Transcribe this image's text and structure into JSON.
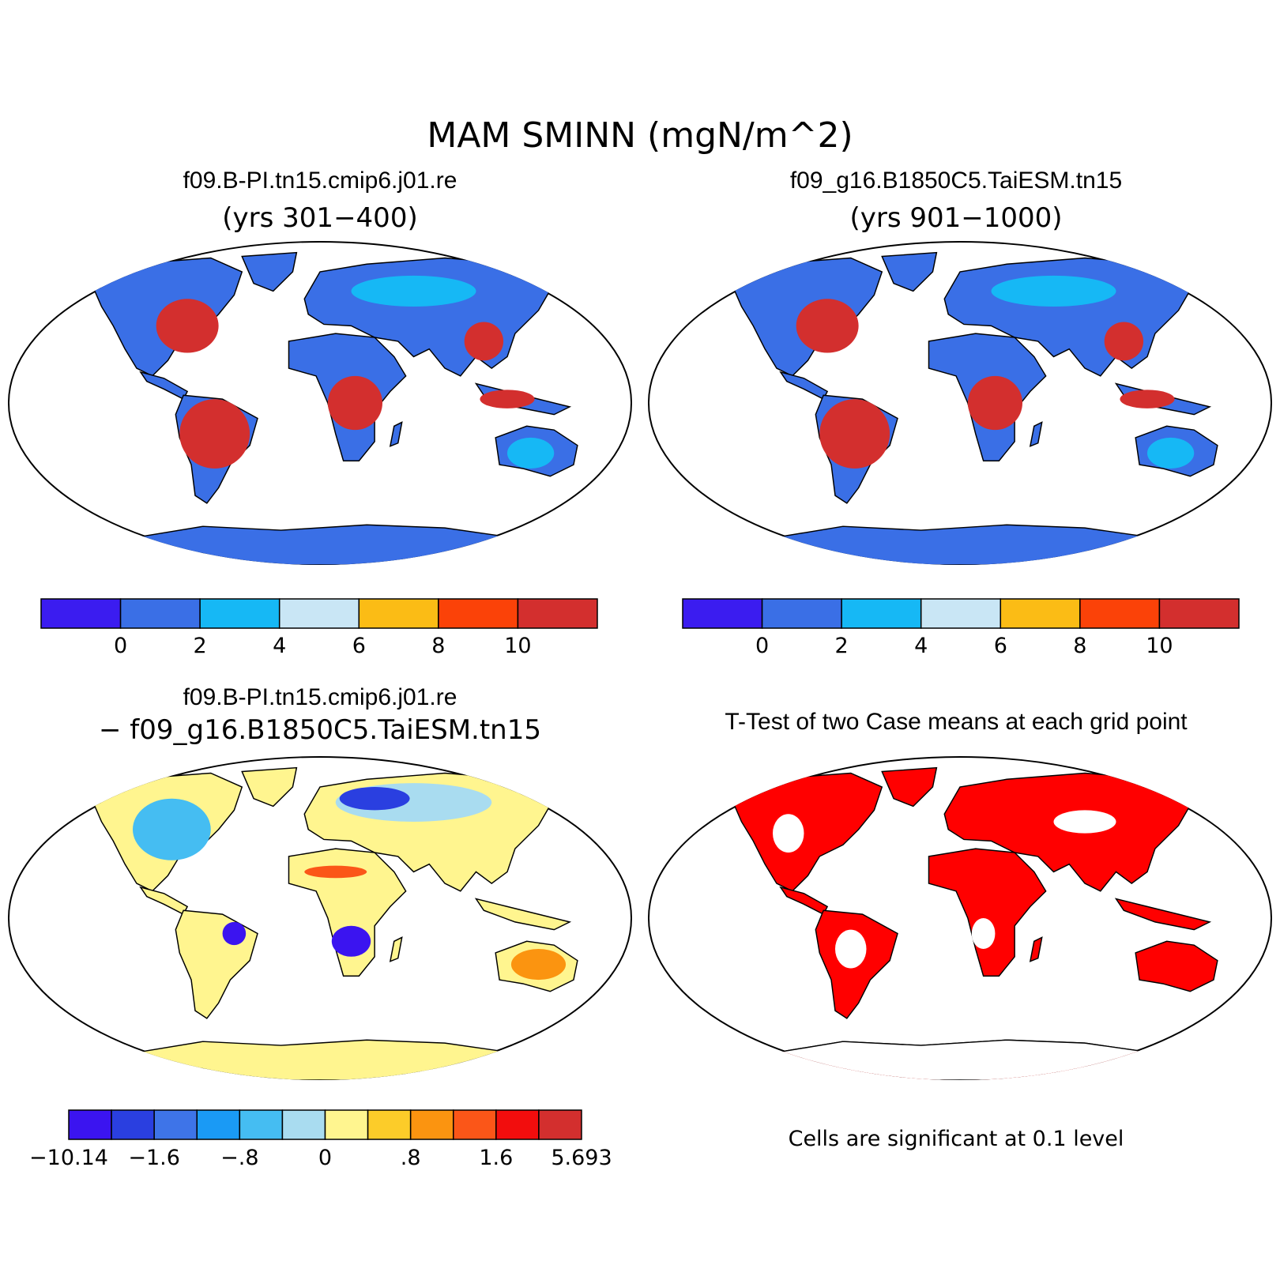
{
  "title": "MAM SMINN (mgN/m^2)",
  "panels": [
    {
      "id": "case1",
      "title": "f09.B-PI.tn15.cmip6.j01.re",
      "subtitle": "(yrs 301−400)"
    },
    {
      "id": "case2",
      "title": "f09_g16.B1850C5.TaiESM.tn15",
      "subtitle": "(yrs 901−1000)"
    },
    {
      "id": "diff",
      "title": "f09.B-PI.tn15.cmip6.j01.re",
      "subtitle": "− f09_g16.B1850C5.TaiESM.tn15"
    },
    {
      "id": "ttest",
      "title": "T-Test of two Case means at each grid point",
      "note": "Cells are significant at 0.1 level"
    }
  ],
  "colorbars": {
    "case": {
      "colors": [
        "#3b1cf0",
        "#3a6fe6",
        "#16b8f5",
        "#c9e6f5",
        "#fbbc15",
        "#fb4208",
        "#d32f2e"
      ],
      "labels": [
        "0",
        "2",
        "4",
        "6",
        "8",
        "10"
      ]
    },
    "diff": {
      "colors": [
        "#3b14f0",
        "#2a3fe0",
        "#3e74e8",
        "#1a9af5",
        "#45bdf2",
        "#a9dcf0",
        "#fff58f",
        "#fccc29",
        "#fb9410",
        "#fb5618",
        "#f20d0d",
        "#d32f2e"
      ],
      "labels": [
        "−10.14",
        "−1.6",
        "−.8",
        "0",
        ".8",
        "1.6",
        "5.693"
      ]
    },
    "significance_color": "#ff0000"
  }
}
